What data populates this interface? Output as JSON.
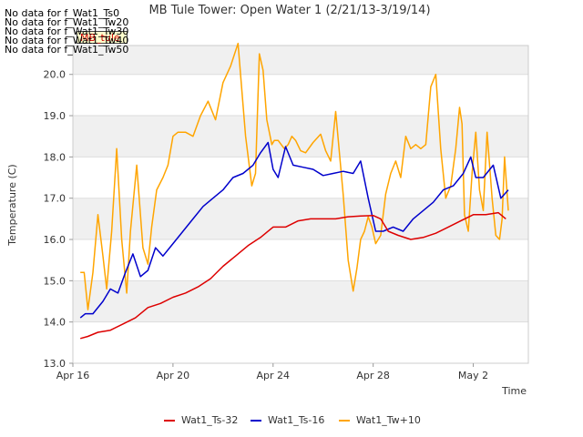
{
  "nodata_lines": [
    "No data for f_Wat1_Ts0",
    "No data for f_Wat1_Tw20",
    "No data for f_Wat1_Tw30",
    "No data for f_Wat1_Tw40",
    "No data for f_Wat1_Tw50"
  ],
  "badge": "MB_tule",
  "chart_data": {
    "type": "line",
    "title": "MB Tule Tower: Open Water 1 (2/21/13-3/19/14)",
    "xlabel": "Time",
    "ylabel": "Temperature (C)",
    "xlim": [
      0,
      18.2
    ],
    "ylim": [
      13.0,
      20.7
    ],
    "x_unit": "days since Apr 16",
    "xticks": [
      {
        "value": 0,
        "label": "Apr 16"
      },
      {
        "value": 4,
        "label": "Apr 20"
      },
      {
        "value": 8,
        "label": "Apr 24"
      },
      {
        "value": 12,
        "label": "Apr 28"
      },
      {
        "value": 16,
        "label": "May 2"
      }
    ],
    "yticks": [
      13.0,
      14.0,
      15.0,
      16.0,
      17.0,
      18.0,
      19.0,
      20.0
    ],
    "grid": true,
    "legend_position": "bottom",
    "series": [
      {
        "name": "Wat1_Ts-32",
        "color": "#dd0000",
        "x": [
          0.3,
          0.6,
          1.0,
          1.5,
          2.0,
          2.5,
          3.0,
          3.5,
          4.0,
          4.5,
          5.0,
          5.5,
          6.0,
          6.5,
          7.0,
          7.5,
          8.0,
          8.5,
          9.0,
          9.5,
          10.0,
          10.5,
          11.0,
          11.5,
          12.0,
          12.3,
          12.6,
          13.0,
          13.5,
          14.0,
          14.5,
          15.0,
          15.5,
          16.0,
          16.5,
          17.0,
          17.3
        ],
        "y": [
          13.6,
          13.65,
          13.75,
          13.8,
          13.95,
          14.1,
          14.35,
          14.45,
          14.6,
          14.7,
          14.85,
          15.05,
          15.35,
          15.6,
          15.85,
          16.05,
          16.3,
          16.3,
          16.45,
          16.5,
          16.5,
          16.5,
          16.55,
          16.57,
          16.58,
          16.5,
          16.2,
          16.1,
          16.0,
          16.05,
          16.15,
          16.3,
          16.45,
          16.6,
          16.6,
          16.65,
          16.5
        ]
      },
      {
        "name": "Wat1_Ts-16",
        "color": "#0000cc",
        "x": [
          0.3,
          0.5,
          0.8,
          1.2,
          1.5,
          1.8,
          2.1,
          2.4,
          2.7,
          3.0,
          3.3,
          3.6,
          4.0,
          4.4,
          4.8,
          5.2,
          5.6,
          6.0,
          6.4,
          6.8,
          7.2,
          7.5,
          7.8,
          8.0,
          8.2,
          8.5,
          8.8,
          9.2,
          9.6,
          10.0,
          10.4,
          10.8,
          11.2,
          11.5,
          11.8,
          12.1,
          12.4,
          12.8,
          13.2,
          13.6,
          14.0,
          14.4,
          14.8,
          15.2,
          15.6,
          15.9,
          16.1,
          16.4,
          16.8,
          17.1,
          17.4
        ],
        "y": [
          14.1,
          14.2,
          14.2,
          14.5,
          14.8,
          14.7,
          15.2,
          15.65,
          15.1,
          15.25,
          15.8,
          15.6,
          15.9,
          16.2,
          16.5,
          16.8,
          17.0,
          17.2,
          17.5,
          17.6,
          17.8,
          18.1,
          18.35,
          17.7,
          17.5,
          18.25,
          17.8,
          17.75,
          17.7,
          17.55,
          17.6,
          17.65,
          17.6,
          17.9,
          17.0,
          16.2,
          16.2,
          16.3,
          16.2,
          16.5,
          16.7,
          16.9,
          17.2,
          17.3,
          17.6,
          18.0,
          17.5,
          17.5,
          17.8,
          17.0,
          17.2
        ]
      },
      {
        "name": "Wat1_Tw+10",
        "color": "#ffa500",
        "x": [
          0.3,
          0.45,
          0.6,
          0.8,
          1.0,
          1.2,
          1.35,
          1.55,
          1.75,
          1.95,
          2.15,
          2.3,
          2.55,
          2.8,
          3.0,
          3.15,
          3.35,
          3.6,
          3.8,
          4.0,
          4.2,
          4.5,
          4.8,
          5.1,
          5.4,
          5.7,
          6.0,
          6.3,
          6.6,
          6.9,
          7.15,
          7.3,
          7.45,
          7.6,
          7.75,
          7.95,
          8.05,
          8.2,
          8.45,
          8.6,
          8.75,
          8.9,
          9.1,
          9.3,
          9.6,
          9.9,
          10.1,
          10.3,
          10.5,
          10.8,
          11.0,
          11.2,
          11.35,
          11.5,
          11.65,
          11.8,
          11.95,
          12.1,
          12.3,
          12.5,
          12.7,
          12.9,
          13.1,
          13.3,
          13.5,
          13.7,
          13.9,
          14.1,
          14.3,
          14.5,
          14.7,
          14.9,
          15.1,
          15.3,
          15.45,
          15.55,
          15.65,
          15.8,
          15.95,
          16.1,
          16.25,
          16.4,
          16.55,
          16.75,
          16.9,
          17.05,
          17.15,
          17.25,
          17.4
        ],
        "y": [
          15.2,
          15.2,
          14.3,
          15.2,
          16.6,
          15.6,
          14.8,
          16.2,
          18.2,
          16.0,
          14.7,
          16.2,
          17.8,
          15.8,
          15.4,
          16.3,
          17.2,
          17.5,
          17.8,
          18.5,
          18.6,
          18.6,
          18.5,
          19.0,
          19.35,
          18.9,
          19.8,
          20.2,
          20.75,
          18.5,
          17.3,
          17.6,
          20.5,
          20.1,
          18.9,
          18.3,
          18.4,
          18.4,
          18.2,
          18.3,
          18.5,
          18.4,
          18.15,
          18.1,
          18.35,
          18.55,
          18.15,
          17.9,
          19.1,
          17.1,
          15.5,
          14.75,
          15.3,
          16.0,
          16.2,
          16.55,
          16.3,
          15.9,
          16.1,
          17.1,
          17.6,
          17.9,
          17.5,
          18.5,
          18.2,
          18.3,
          18.2,
          18.3,
          19.7,
          20.0,
          18.2,
          17.0,
          17.3,
          18.2,
          19.2,
          18.8,
          16.6,
          16.2,
          17.6,
          18.6,
          17.2,
          16.7,
          18.6,
          17.0,
          16.1,
          16.0,
          16.5,
          18.0,
          16.7
        ]
      }
    ]
  }
}
